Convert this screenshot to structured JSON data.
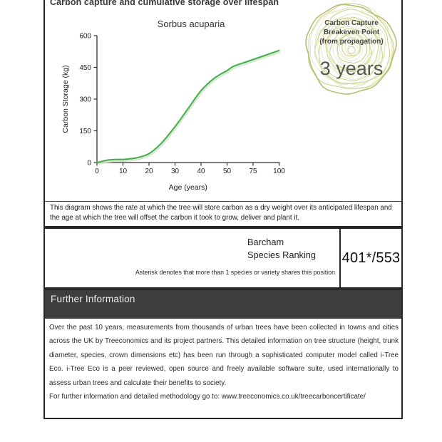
{
  "chart_section": {
    "header": "Carbon capture and cumulative storage over lifespan",
    "description": "This diagram shows the rate at which the tree will store carbon as a dry weight over its anticipated lifespan and the age at which the tree will offset the carbon it took to grow, deliver and plant it."
  },
  "chart_data": {
    "type": "line",
    "title": "Sorbus acuparia",
    "xlabel": "Age (years)",
    "ylabel": "Carbon Storage (kg)",
    "x_ticks": [
      0,
      10,
      20,
      30,
      40,
      50,
      75,
      100
    ],
    "x_tick_spacing": "equal-interval ticks (non-linear age scale after 50)",
    "y_ticks": [
      0,
      150,
      300,
      450,
      600
    ],
    "ylim": [
      0,
      600
    ],
    "grid": false,
    "legend": "none",
    "line_color": "#44ad4a",
    "series": [
      {
        "name": "Cumulative carbon storage (kg)",
        "points": [
          [
            0,
            0
          ],
          [
            3,
            9
          ],
          [
            5,
            13
          ],
          [
            8,
            15
          ],
          [
            10,
            15
          ],
          [
            15,
            22
          ],
          [
            20,
            42
          ],
          [
            25,
            95
          ],
          [
            30,
            170
          ],
          [
            35,
            255
          ],
          [
            40,
            340
          ],
          [
            45,
            398
          ],
          [
            50,
            435
          ],
          [
            55,
            452
          ],
          [
            60,
            462
          ],
          [
            75,
            487
          ],
          [
            100,
            530
          ]
        ]
      }
    ]
  },
  "badge": {
    "icon": "tree-rings-icon",
    "lines": [
      "Carbon Capture",
      "Breakeven Point",
      "(from propagation)"
    ],
    "value": "3 years",
    "ring_color": "#c9cd86",
    "text_color": "#4a4a3f",
    "value_color": "#57574d"
  },
  "ranking": {
    "label_line1": "Barcham",
    "label_line2": "Species Ranking",
    "value": "401*/553",
    "footnote": "Asterisk denotes that more than 1 species or variety shares this position"
  },
  "further_info": {
    "title": "Further Information",
    "paragraph": "Over the past 10 years, measurements from thousands of urban trees have been collected in towns and cities across the UK by Treeconomics and its project partners. This detailed information on tree structure (height, trunk diameter, species, crown dimensions etc) has been run through a sophisticated computer model called i-Tree Eco. i-Tree Eco is a peer reviewed, open source and freely available software suite, used internationally to assess urban trees and calculate their benefits to society.",
    "link_line": "For further information and detailed methodology go to: www.treeconomics.co.uk/treecarboncertificate/"
  },
  "colors": {
    "box_border": "#262626",
    "header_bar_bg": "#3d3d3d",
    "header_bar_text": "#ededed",
    "axis": "#2f2f2f",
    "line_green": "#44ad4a",
    "line_shadow": "#cfe4cd"
  }
}
